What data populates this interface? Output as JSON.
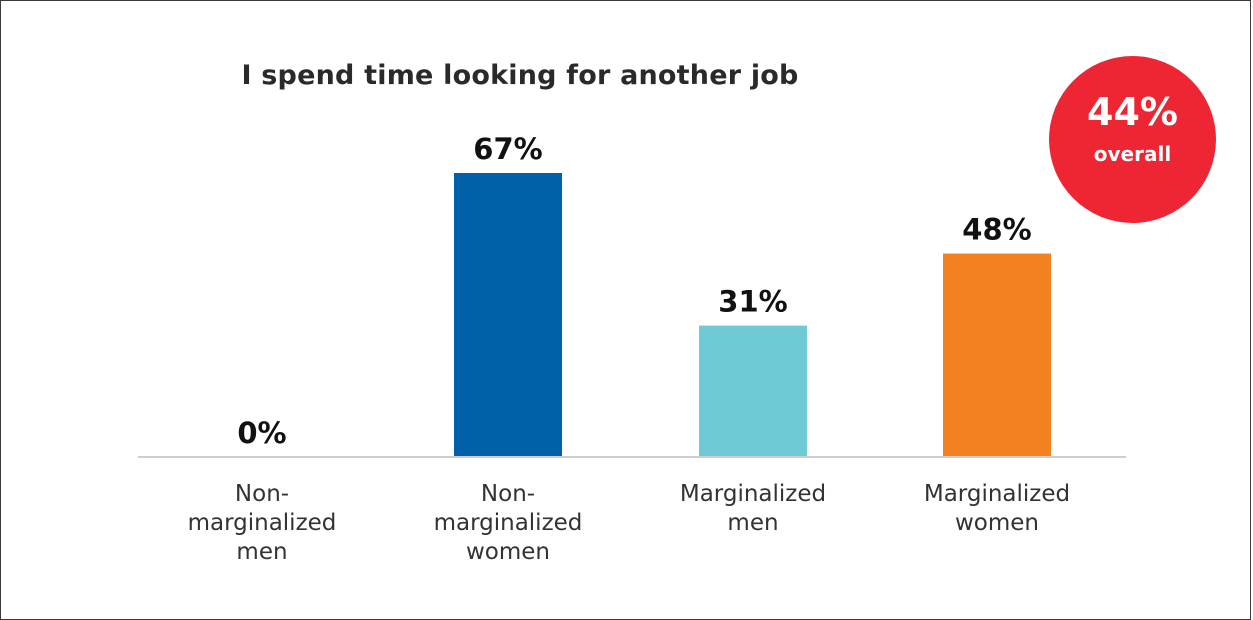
{
  "chart_data": {
    "type": "bar",
    "title": "I spend time looking for another job",
    "categories": [
      "Non-marginalized men",
      "Non-marginalized women",
      "Marginalized men",
      "Marginalized women"
    ],
    "category_lines": [
      [
        "Non-",
        "marginalized",
        "men"
      ],
      [
        "Non-",
        "marginalized",
        "women"
      ],
      [
        "Marginalized",
        "men"
      ],
      [
        "Marginalized",
        "women"
      ]
    ],
    "values": [
      0,
      67,
      31,
      48
    ],
    "value_labels": [
      "0%",
      "67%",
      "31%",
      "48%"
    ],
    "colors": [
      "#0060a8",
      "#0060a8",
      "#6ecbd5",
      "#f48120"
    ],
    "ylim": [
      0,
      67
    ],
    "grid": false,
    "xlabel": "",
    "ylabel": ""
  },
  "badge": {
    "value": "44%",
    "label": "overall",
    "color": "#ee2532"
  }
}
